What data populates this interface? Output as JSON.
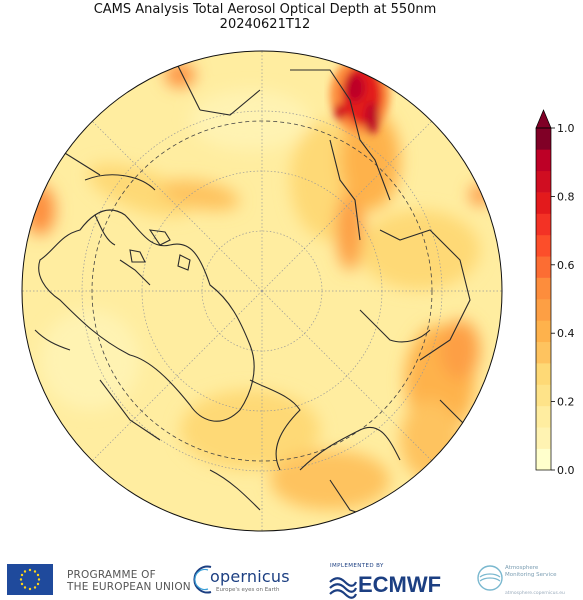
{
  "title": {
    "line1": "CAMS Analysis Total Aerosol Optical Depth at 550nm",
    "line2": "20240621T12"
  },
  "map": {
    "projection": "north-polar-stereographic",
    "land_outline_color": "#2b2b2b",
    "graticule_style": "dotted-grey",
    "dashed_circle": "arctic-circle"
  },
  "colorbar": {
    "min": 0.0,
    "max": 1.0,
    "extend": "max",
    "tick_labels": [
      "0.0",
      "0.2",
      "0.4",
      "0.6",
      "0.8",
      "1.0"
    ],
    "tick_values": [
      0.0,
      0.2,
      0.4,
      0.6,
      0.8,
      1.0
    ],
    "colors": [
      "#ffffcc",
      "#fff3b2",
      "#ffeda0",
      "#fee389",
      "#fed976",
      "#fec35f",
      "#feb24c",
      "#fd9f44",
      "#fd8d3c",
      "#fc6d33",
      "#fc4e2a",
      "#f33225",
      "#e31a1c",
      "#d00d21",
      "#bd0026",
      "#800026"
    ]
  },
  "footer": {
    "eu_line1": "PROGRAMME OF",
    "eu_line2": "THE EUROPEAN UNION",
    "copernicus": "opernicus",
    "copernicus_sub": "Europe's eyes on Earth",
    "implemented_by": "IMPLEMENTED BY",
    "ecmwf": "ECMWF",
    "cams_line1": "Atmosphere",
    "cams_line2": "Monitoring Service",
    "cams_url": "atmosphere.copernicus.eu"
  }
}
